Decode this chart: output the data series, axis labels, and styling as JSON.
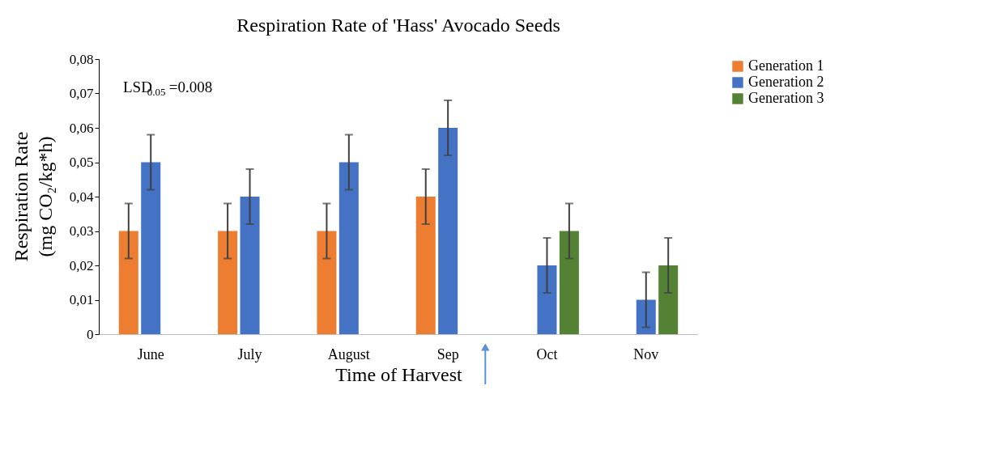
{
  "chart_data": {
    "type": "bar",
    "title": "Respiration Rate of  'Hass' Avocado Seeds",
    "xlabel": "Time of Harvest",
    "ylabel": "Respiration Rate\n(mg CO₂/kg*h)",
    "categories": [
      "June",
      "July",
      "August",
      "Sep",
      "Oct",
      "Nov"
    ],
    "series": [
      {
        "name": "Generation 1",
        "color": "#ed7d31",
        "values": [
          0.03,
          0.03,
          0.03,
          0.04,
          null,
          null
        ],
        "errors": [
          0.008,
          0.008,
          0.008,
          0.008,
          null,
          null
        ]
      },
      {
        "name": "Generation 2",
        "color": "#4472c4",
        "values": [
          0.05,
          0.04,
          0.05,
          0.06,
          0.02,
          0.01
        ],
        "errors": [
          0.008,
          0.008,
          0.008,
          0.008,
          0.008,
          0.008
        ]
      },
      {
        "name": "Generation 3",
        "color": "#548235",
        "values": [
          null,
          null,
          null,
          null,
          0.03,
          0.02
        ],
        "errors": [
          null,
          null,
          null,
          null,
          0.008,
          0.008
        ]
      }
    ],
    "ylim": [
      0,
      0.08
    ],
    "yticks": [
      0,
      {
        "value": 0.01,
        "label": "0,01"
      },
      {
        "value": 0.02,
        "label": "0,02"
      },
      {
        "value": 0.03,
        "label": "0,03"
      },
      {
        "value": 0.04,
        "label": "0,04"
      },
      {
        "value": 0.05,
        "label": "0,05"
      },
      {
        "value": 0.06,
        "label": "0,06"
      },
      {
        "value": 0.07,
        "label": "0,07"
      },
      {
        "value": 0.08,
        "label": "0,08"
      }
    ],
    "annotations": [
      "LSD$_{0.05}$=0.008"
    ],
    "grid": false,
    "legend": "right"
  }
}
